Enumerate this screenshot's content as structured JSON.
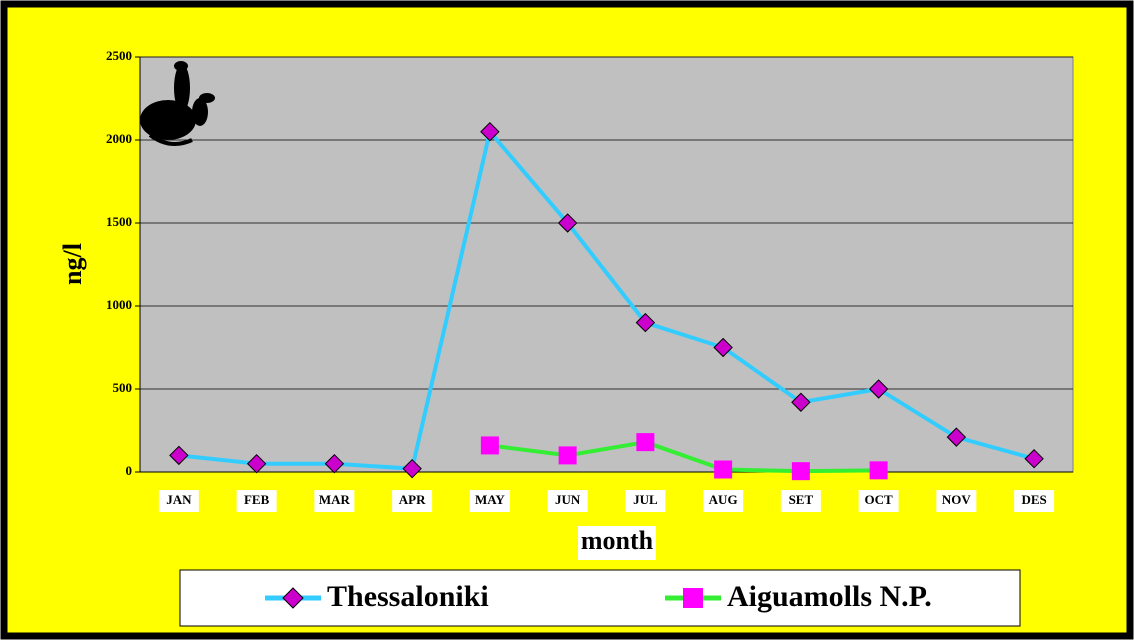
{
  "chart_data": {
    "type": "line",
    "y_label": "ng/l",
    "x_label": "month",
    "categories": [
      "JAN",
      "FEB",
      "MAR",
      "APR",
      "MAY",
      "JUN",
      "JUL",
      "AUG",
      "SET",
      "OCT",
      "NOV",
      "DES"
    ],
    "series": [
      {
        "name": "Thessaloniki",
        "color": "#33ccff",
        "marker": "diamond",
        "marker_color": "#cc00cc",
        "values": [
          100,
          50,
          50,
          20,
          2050,
          1500,
          900,
          750,
          420,
          500,
          210,
          80
        ]
      },
      {
        "name": "Aiguamolls N.P.",
        "color": "#33ee33",
        "marker": "square",
        "marker_color": "#ff00ff",
        "values": [
          null,
          null,
          null,
          null,
          160,
          100,
          180,
          15,
          5,
          10,
          null,
          null
        ]
      }
    ],
    "ylim": [
      0,
      2500
    ],
    "yticks": [
      0,
      500,
      1000,
      1500,
      2000,
      2500
    ],
    "grid": true,
    "legend": "bottom"
  }
}
